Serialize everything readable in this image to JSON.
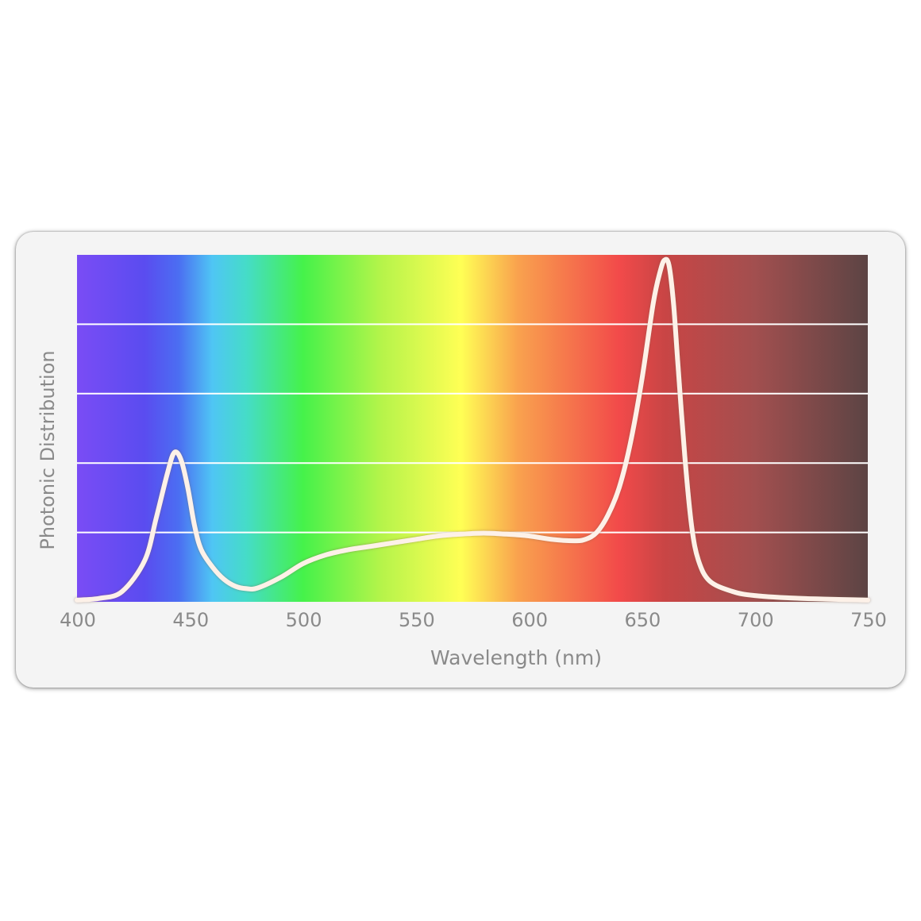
{
  "chart_data": {
    "type": "line",
    "xlabel": "Wavelength (nm)",
    "ylabel": "Photonic Distribution",
    "xlim": [
      400,
      750
    ],
    "ylim": [
      0,
      1
    ],
    "x_ticks": [
      400,
      450,
      500,
      550,
      600,
      650,
      700,
      750
    ],
    "x_tick_labels": [
      "400",
      "450",
      "500",
      "550",
      "600",
      "650",
      "700",
      "750"
    ],
    "grid": "horizontal",
    "grid_values": [
      0.2,
      0.4,
      0.6,
      0.8
    ],
    "background": "visible spectrum gradient",
    "spectrum_colors": [
      {
        "nm": 400,
        "color": "#7a4cf5"
      },
      {
        "nm": 430,
        "color": "#5a4cf0"
      },
      {
        "nm": 445,
        "color": "#4b6ef2"
      },
      {
        "nm": 460,
        "color": "#4fc6f4"
      },
      {
        "nm": 475,
        "color": "#45dcc8"
      },
      {
        "nm": 500,
        "color": "#45f24a"
      },
      {
        "nm": 535,
        "color": "#b6f44a"
      },
      {
        "nm": 570,
        "color": "#ffff55"
      },
      {
        "nm": 595,
        "color": "#f9a24e"
      },
      {
        "nm": 640,
        "color": "#f24a4a"
      },
      {
        "nm": 660,
        "color": "#c94545"
      },
      {
        "nm": 700,
        "color": "#a24f4f"
      },
      {
        "nm": 750,
        "color": "#5c4444"
      }
    ],
    "line_color": "#fdf1e8",
    "series": [
      {
        "x": [
          400,
          410,
          420,
          430,
          435,
          440,
          443,
          446,
          449,
          452,
          455,
          460,
          465,
          470,
          475,
          480,
          490,
          500,
          510,
          520,
          530,
          540,
          550,
          560,
          570,
          580,
          590,
          600,
          610,
          620,
          625,
          630,
          635,
          640,
          645,
          650,
          655,
          658,
          660,
          662,
          664,
          666,
          669,
          672,
          675,
          680,
          690,
          700,
          720,
          750
        ],
        "y": [
          0.005,
          0.01,
          0.03,
          0.12,
          0.24,
          0.37,
          0.43,
          0.41,
          0.33,
          0.22,
          0.15,
          0.1,
          0.065,
          0.045,
          0.038,
          0.04,
          0.07,
          0.11,
          0.135,
          0.15,
          0.16,
          0.17,
          0.18,
          0.19,
          0.195,
          0.198,
          0.195,
          0.19,
          0.18,
          0.176,
          0.18,
          0.2,
          0.25,
          0.33,
          0.46,
          0.64,
          0.86,
          0.95,
          0.985,
          0.97,
          0.86,
          0.68,
          0.42,
          0.22,
          0.12,
          0.06,
          0.03,
          0.018,
          0.01,
          0.005
        ]
      }
    ]
  }
}
